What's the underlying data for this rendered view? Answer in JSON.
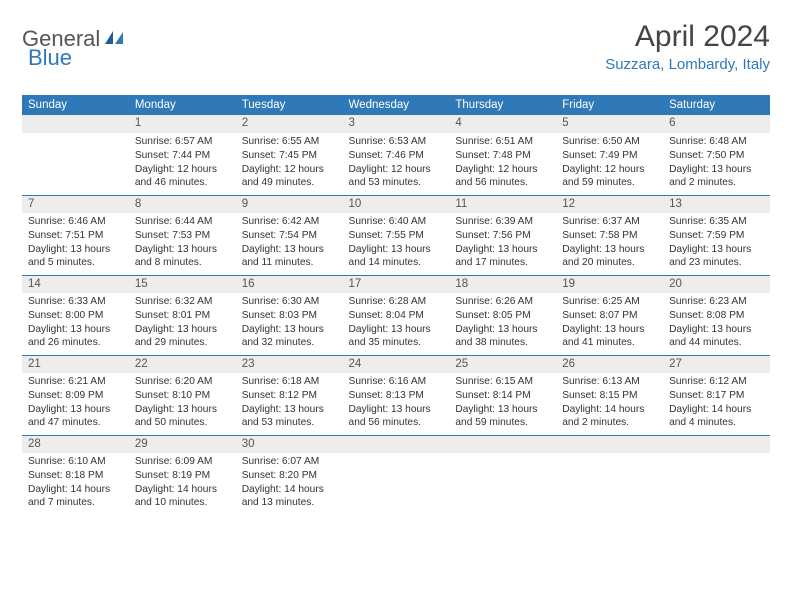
{
  "logo": {
    "word1": "General",
    "word2": "Blue"
  },
  "title": "April 2024",
  "location": "Suzzara, Lombardy, Italy",
  "header_color": "#2f79b9",
  "stripe_color": "#ededed",
  "weekdays": [
    "Sunday",
    "Monday",
    "Tuesday",
    "Wednesday",
    "Thursday",
    "Friday",
    "Saturday"
  ],
  "weeks": [
    [
      null,
      {
        "n": "1",
        "sr": "Sunrise: 6:57 AM",
        "ss": "Sunset: 7:44 PM",
        "dl": "Daylight: 12 hours and 46 minutes."
      },
      {
        "n": "2",
        "sr": "Sunrise: 6:55 AM",
        "ss": "Sunset: 7:45 PM",
        "dl": "Daylight: 12 hours and 49 minutes."
      },
      {
        "n": "3",
        "sr": "Sunrise: 6:53 AM",
        "ss": "Sunset: 7:46 PM",
        "dl": "Daylight: 12 hours and 53 minutes."
      },
      {
        "n": "4",
        "sr": "Sunrise: 6:51 AM",
        "ss": "Sunset: 7:48 PM",
        "dl": "Daylight: 12 hours and 56 minutes."
      },
      {
        "n": "5",
        "sr": "Sunrise: 6:50 AM",
        "ss": "Sunset: 7:49 PM",
        "dl": "Daylight: 12 hours and 59 minutes."
      },
      {
        "n": "6",
        "sr": "Sunrise: 6:48 AM",
        "ss": "Sunset: 7:50 PM",
        "dl": "Daylight: 13 hours and 2 minutes."
      }
    ],
    [
      {
        "n": "7",
        "sr": "Sunrise: 6:46 AM",
        "ss": "Sunset: 7:51 PM",
        "dl": "Daylight: 13 hours and 5 minutes."
      },
      {
        "n": "8",
        "sr": "Sunrise: 6:44 AM",
        "ss": "Sunset: 7:53 PM",
        "dl": "Daylight: 13 hours and 8 minutes."
      },
      {
        "n": "9",
        "sr": "Sunrise: 6:42 AM",
        "ss": "Sunset: 7:54 PM",
        "dl": "Daylight: 13 hours and 11 minutes."
      },
      {
        "n": "10",
        "sr": "Sunrise: 6:40 AM",
        "ss": "Sunset: 7:55 PM",
        "dl": "Daylight: 13 hours and 14 minutes."
      },
      {
        "n": "11",
        "sr": "Sunrise: 6:39 AM",
        "ss": "Sunset: 7:56 PM",
        "dl": "Daylight: 13 hours and 17 minutes."
      },
      {
        "n": "12",
        "sr": "Sunrise: 6:37 AM",
        "ss": "Sunset: 7:58 PM",
        "dl": "Daylight: 13 hours and 20 minutes."
      },
      {
        "n": "13",
        "sr": "Sunrise: 6:35 AM",
        "ss": "Sunset: 7:59 PM",
        "dl": "Daylight: 13 hours and 23 minutes."
      }
    ],
    [
      {
        "n": "14",
        "sr": "Sunrise: 6:33 AM",
        "ss": "Sunset: 8:00 PM",
        "dl": "Daylight: 13 hours and 26 minutes."
      },
      {
        "n": "15",
        "sr": "Sunrise: 6:32 AM",
        "ss": "Sunset: 8:01 PM",
        "dl": "Daylight: 13 hours and 29 minutes."
      },
      {
        "n": "16",
        "sr": "Sunrise: 6:30 AM",
        "ss": "Sunset: 8:03 PM",
        "dl": "Daylight: 13 hours and 32 minutes."
      },
      {
        "n": "17",
        "sr": "Sunrise: 6:28 AM",
        "ss": "Sunset: 8:04 PM",
        "dl": "Daylight: 13 hours and 35 minutes."
      },
      {
        "n": "18",
        "sr": "Sunrise: 6:26 AM",
        "ss": "Sunset: 8:05 PM",
        "dl": "Daylight: 13 hours and 38 minutes."
      },
      {
        "n": "19",
        "sr": "Sunrise: 6:25 AM",
        "ss": "Sunset: 8:07 PM",
        "dl": "Daylight: 13 hours and 41 minutes."
      },
      {
        "n": "20",
        "sr": "Sunrise: 6:23 AM",
        "ss": "Sunset: 8:08 PM",
        "dl": "Daylight: 13 hours and 44 minutes."
      }
    ],
    [
      {
        "n": "21",
        "sr": "Sunrise: 6:21 AM",
        "ss": "Sunset: 8:09 PM",
        "dl": "Daylight: 13 hours and 47 minutes."
      },
      {
        "n": "22",
        "sr": "Sunrise: 6:20 AM",
        "ss": "Sunset: 8:10 PM",
        "dl": "Daylight: 13 hours and 50 minutes."
      },
      {
        "n": "23",
        "sr": "Sunrise: 6:18 AM",
        "ss": "Sunset: 8:12 PM",
        "dl": "Daylight: 13 hours and 53 minutes."
      },
      {
        "n": "24",
        "sr": "Sunrise: 6:16 AM",
        "ss": "Sunset: 8:13 PM",
        "dl": "Daylight: 13 hours and 56 minutes."
      },
      {
        "n": "25",
        "sr": "Sunrise: 6:15 AM",
        "ss": "Sunset: 8:14 PM",
        "dl": "Daylight: 13 hours and 59 minutes."
      },
      {
        "n": "26",
        "sr": "Sunrise: 6:13 AM",
        "ss": "Sunset: 8:15 PM",
        "dl": "Daylight: 14 hours and 2 minutes."
      },
      {
        "n": "27",
        "sr": "Sunrise: 6:12 AM",
        "ss": "Sunset: 8:17 PM",
        "dl": "Daylight: 14 hours and 4 minutes."
      }
    ],
    [
      {
        "n": "28",
        "sr": "Sunrise: 6:10 AM",
        "ss": "Sunset: 8:18 PM",
        "dl": "Daylight: 14 hours and 7 minutes."
      },
      {
        "n": "29",
        "sr": "Sunrise: 6:09 AM",
        "ss": "Sunset: 8:19 PM",
        "dl": "Daylight: 14 hours and 10 minutes."
      },
      {
        "n": "30",
        "sr": "Sunrise: 6:07 AM",
        "ss": "Sunset: 8:20 PM",
        "dl": "Daylight: 14 hours and 13 minutes."
      },
      null,
      null,
      null,
      null
    ]
  ]
}
